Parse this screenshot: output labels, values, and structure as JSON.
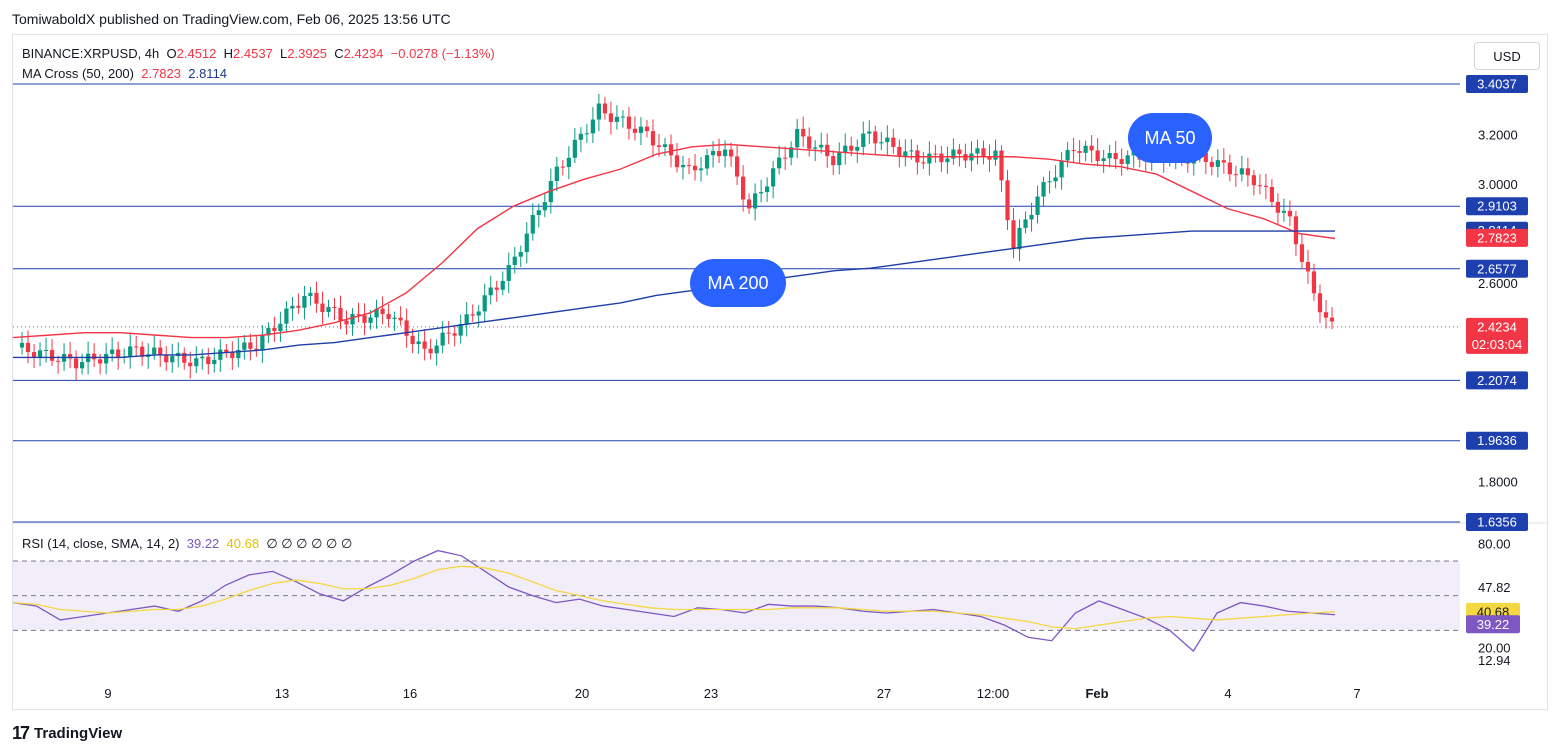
{
  "header": {
    "text": "TomiwaboldX published on TradingView.com, Feb 06, 2025 13:56 UTC"
  },
  "currency_button": "USD",
  "legend": {
    "symbol": "BINANCE:XRPUSD, 4h",
    "o_label": "O",
    "o": "2.4512",
    "h_label": "H",
    "h": "2.4537",
    "l_label": "L",
    "l": "2.3925",
    "c_label": "C",
    "c": "2.4234",
    "change": "−0.0278 (−1.13%)",
    "ma_name": "MA Cross (50, 200)",
    "ma50": "2.7823",
    "ma200": "2.8114",
    "rsi_name": "RSI (14, close, SMA, 14, 2)",
    "rsi": "39.22",
    "rsi_ma": "40.68",
    "rsi_extras": "∅ ∅ ∅ ∅ ∅ ∅"
  },
  "footer": {
    "logo": "17",
    "brand": "TradingView"
  },
  "colors": {
    "bull": "#089981",
    "bear": "#f23645",
    "ma50": "#f23645",
    "ma200": "#1e3fa8",
    "hline": "#1e40af",
    "bubble": "#2962ff",
    "rsi": "#7e57c2",
    "rsi_ma": "#f5d742"
  },
  "chart_data": [
    {
      "type": "candlestick",
      "title": "BINANCE:XRPUSD, 4h",
      "ylim": [
        1.72,
        3.5
      ],
      "yticks": [
        "3.2000",
        "3.0000",
        "2.6000",
        "1.8000"
      ],
      "xticks": [
        "9",
        "13",
        "16",
        "20",
        "23",
        "27",
        "12:00",
        "Feb",
        "4",
        "7"
      ],
      "horizontal_levels": [
        "3.4037",
        "2.9103",
        "2.6577",
        "2.2074",
        "1.9636",
        "1.6356"
      ],
      "horizontal_level_values": [
        3.4037,
        2.9103,
        2.6577,
        2.2074,
        1.9636,
        1.6356
      ],
      "price_tags": [
        {
          "label": "2.8114",
          "value": 2.8114,
          "series": "MA 200"
        },
        {
          "label": "2.7823",
          "value": 2.7823,
          "series": "MA 50"
        },
        {
          "label": "2.4234",
          "sublabel": "02:03:04",
          "value": 2.4234,
          "series": "last"
        }
      ],
      "annotations": [
        "MA 50",
        "MA 200"
      ],
      "series": [
        {
          "name": "MA 50",
          "values": [
            2.38,
            2.39,
            2.4,
            2.4,
            2.39,
            2.38,
            2.38,
            2.39,
            2.41,
            2.44,
            2.48,
            2.56,
            2.68,
            2.82,
            2.91,
            2.97,
            3.02,
            3.06,
            3.12,
            3.15,
            3.16,
            3.15,
            3.14,
            3.13,
            3.12,
            3.11,
            3.11,
            3.11,
            3.11,
            3.1,
            3.08,
            3.07,
            3.04,
            2.97,
            2.9,
            2.86,
            2.8,
            2.78
          ]
        },
        {
          "name": "MA 200",
          "values": [
            2.3,
            2.3,
            2.3,
            2.3,
            2.31,
            2.31,
            2.32,
            2.33,
            2.35,
            2.36,
            2.38,
            2.4,
            2.42,
            2.44,
            2.46,
            2.48,
            2.5,
            2.52,
            2.55,
            2.57,
            2.59,
            2.61,
            2.63,
            2.65,
            2.66,
            2.68,
            2.7,
            2.72,
            2.74,
            2.76,
            2.78,
            2.79,
            2.8,
            2.81,
            2.81,
            2.81,
            2.81,
            2.81
          ]
        }
      ]
    },
    {
      "type": "line",
      "title": "RSI (14, close, SMA, 14, 2)",
      "ylim": [
        10,
        85
      ],
      "yticks": [
        "80.00",
        "47.82",
        "20.00",
        "12.94"
      ],
      "bands": [
        30,
        70
      ],
      "series": [
        {
          "name": "RSI",
          "values": [
            46,
            44,
            36,
            38,
            40,
            42,
            44,
            41,
            47,
            56,
            62,
            64,
            58,
            51,
            47,
            55,
            62,
            70,
            76,
            73,
            64,
            55,
            50,
            46,
            48,
            44,
            42,
            40,
            38,
            43,
            42,
            40,
            45,
            44,
            44,
            43,
            41,
            40,
            41,
            42,
            40,
            38,
            33,
            26,
            24,
            40,
            47,
            42,
            37,
            30,
            18,
            40,
            46,
            44,
            41,
            40,
            39
          ]
        },
        {
          "name": "RSI-based MA",
          "values": [
            46,
            45,
            42,
            41,
            40,
            41,
            42,
            42,
            44,
            48,
            53,
            57,
            59,
            57,
            54,
            54,
            56,
            60,
            65,
            67,
            66,
            63,
            58,
            53,
            50,
            47,
            45,
            43,
            42,
            42,
            42,
            42,
            42,
            43,
            43,
            43,
            42,
            41,
            41,
            41,
            40,
            39,
            37,
            35,
            32,
            31,
            33,
            35,
            37,
            38,
            37,
            36,
            37,
            38,
            39,
            40,
            40.68
          ]
        }
      ]
    }
  ]
}
